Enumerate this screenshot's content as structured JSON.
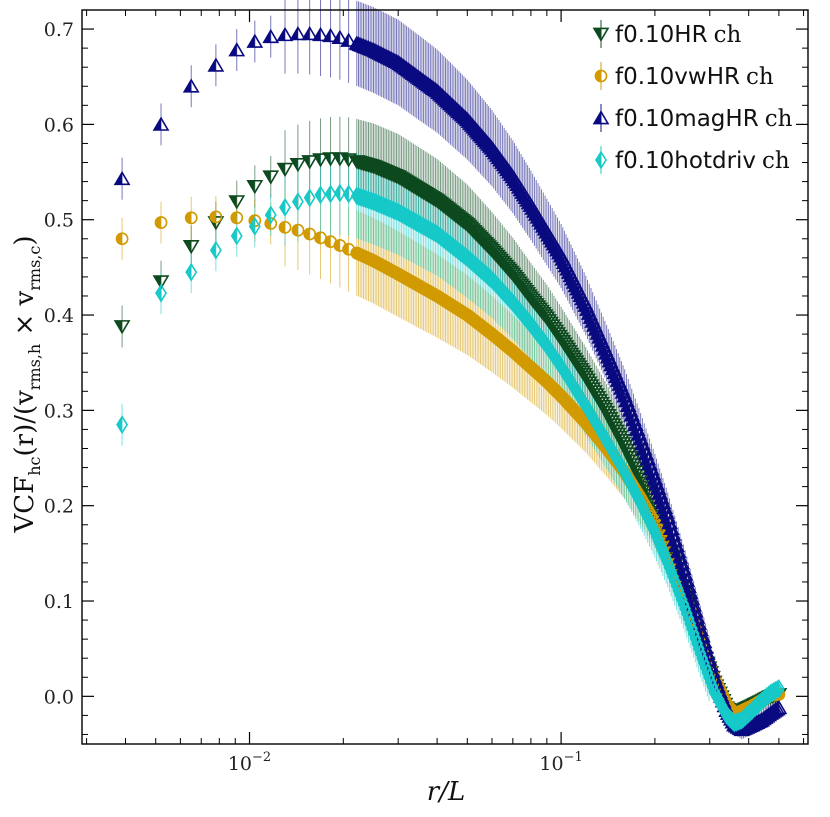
{
  "chart_data": {
    "type": "scatter",
    "x_scale": "log",
    "xlim": [
      0.0029,
      0.62
    ],
    "ylim": [
      -0.05,
      0.72
    ],
    "xlabel": "r/L",
    "ylabel": "VCF_hc(r)/(v_rms,h × v_rms,c)",
    "xlabel_parts": {
      "main": "r/L"
    },
    "ylabel_parts": {
      "base": "VCF",
      "sub1": "hc",
      "mid": "(r)/(v",
      "sub2": "rms,h",
      "times": " × v",
      "sub3": "rms,c",
      "end": ")"
    },
    "y_ticks": [
      0.0,
      0.1,
      0.2,
      0.3,
      0.4,
      0.5,
      0.6,
      0.7
    ],
    "y_tick_labels": [
      "0.0",
      "0.1",
      "0.2",
      "0.3",
      "0.4",
      "0.5",
      "0.6",
      "0.7"
    ],
    "x_ticks": [
      0.01,
      0.1
    ],
    "x_tick_labels": [
      {
        "base": "10",
        "exp": "−2"
      },
      {
        "base": "10",
        "exp": "−1"
      }
    ],
    "legend_position": "top-right",
    "grid": false,
    "series": [
      {
        "name": "f0.10HR",
        "suffix": "ch",
        "color": "#0d4a1f",
        "marker": "triangle-down",
        "points": [
          [
            0.0039,
            0.388
          ],
          [
            0.0052,
            0.435
          ],
          [
            0.0065,
            0.472
          ],
          [
            0.0078,
            0.497
          ],
          [
            0.0091,
            0.519
          ],
          [
            0.0104,
            0.535
          ],
          [
            0.0117,
            0.545
          ],
          [
            0.013,
            0.553
          ],
          [
            0.0143,
            0.558
          ],
          [
            0.0156,
            0.561
          ],
          [
            0.0169,
            0.563
          ],
          [
            0.0182,
            0.564
          ],
          [
            0.0195,
            0.564
          ],
          [
            0.0208,
            0.563
          ],
          [
            0.0221,
            0.561
          ],
          [
            0.025,
            0.556
          ],
          [
            0.03,
            0.545
          ],
          [
            0.04,
            0.52
          ],
          [
            0.05,
            0.495
          ],
          [
            0.06,
            0.468
          ],
          [
            0.07,
            0.443
          ],
          [
            0.08,
            0.418
          ],
          [
            0.09,
            0.397
          ],
          [
            0.1,
            0.375
          ],
          [
            0.12,
            0.335
          ],
          [
            0.14,
            0.298
          ],
          [
            0.16,
            0.262
          ],
          [
            0.18,
            0.228
          ],
          [
            0.2,
            0.193
          ],
          [
            0.22,
            0.158
          ],
          [
            0.25,
            0.105
          ],
          [
            0.28,
            0.055
          ],
          [
            0.31,
            0.015
          ],
          [
            0.34,
            -0.012
          ],
          [
            0.36,
            -0.02
          ],
          [
            0.38,
            -0.015
          ],
          [
            0.41,
            -0.01
          ],
          [
            0.44,
            -0.005
          ],
          [
            0.47,
            0.0
          ],
          [
            0.5,
            0.002
          ]
        ]
      },
      {
        "name": "f0.10vwHR",
        "suffix": "ch",
        "color": "#d19a00",
        "marker": "circle-half",
        "points": [
          [
            0.0039,
            0.48
          ],
          [
            0.0052,
            0.497
          ],
          [
            0.0065,
            0.502
          ],
          [
            0.0078,
            0.503
          ],
          [
            0.0091,
            0.502
          ],
          [
            0.0104,
            0.499
          ],
          [
            0.0117,
            0.496
          ],
          [
            0.013,
            0.492
          ],
          [
            0.0143,
            0.489
          ],
          [
            0.0156,
            0.485
          ],
          [
            0.0169,
            0.481
          ],
          [
            0.0182,
            0.477
          ],
          [
            0.0195,
            0.473
          ],
          [
            0.0208,
            0.469
          ],
          [
            0.0221,
            0.465
          ],
          [
            0.025,
            0.457
          ],
          [
            0.03,
            0.443
          ],
          [
            0.04,
            0.42
          ],
          [
            0.05,
            0.4
          ],
          [
            0.06,
            0.38
          ],
          [
            0.07,
            0.362
          ],
          [
            0.08,
            0.345
          ],
          [
            0.09,
            0.33
          ],
          [
            0.1,
            0.315
          ],
          [
            0.12,
            0.287
          ],
          [
            0.14,
            0.26
          ],
          [
            0.16,
            0.235
          ],
          [
            0.18,
            0.208
          ],
          [
            0.2,
            0.182
          ],
          [
            0.22,
            0.152
          ],
          [
            0.25,
            0.105
          ],
          [
            0.28,
            0.06
          ],
          [
            0.31,
            0.02
          ],
          [
            0.34,
            -0.008
          ],
          [
            0.36,
            -0.018
          ],
          [
            0.38,
            -0.015
          ],
          [
            0.41,
            -0.01
          ],
          [
            0.44,
            -0.004
          ],
          [
            0.47,
            0.001
          ],
          [
            0.5,
            0.002
          ]
        ]
      },
      {
        "name": "f0.10magHR",
        "suffix": "ch",
        "color": "#0a0a80",
        "marker": "triangle-up",
        "points": [
          [
            0.0039,
            0.543
          ],
          [
            0.0052,
            0.6
          ],
          [
            0.0065,
            0.64
          ],
          [
            0.0078,
            0.662
          ],
          [
            0.0091,
            0.678
          ],
          [
            0.0104,
            0.687
          ],
          [
            0.0117,
            0.692
          ],
          [
            0.013,
            0.694
          ],
          [
            0.0143,
            0.695
          ],
          [
            0.0156,
            0.695
          ],
          [
            0.0169,
            0.694
          ],
          [
            0.0182,
            0.693
          ],
          [
            0.0195,
            0.691
          ],
          [
            0.0208,
            0.688
          ],
          [
            0.0221,
            0.685
          ],
          [
            0.025,
            0.678
          ],
          [
            0.03,
            0.665
          ],
          [
            0.04,
            0.635
          ],
          [
            0.05,
            0.605
          ],
          [
            0.06,
            0.575
          ],
          [
            0.07,
            0.545
          ],
          [
            0.08,
            0.515
          ],
          [
            0.09,
            0.487
          ],
          [
            0.1,
            0.462
          ],
          [
            0.12,
            0.41
          ],
          [
            0.14,
            0.36
          ],
          [
            0.16,
            0.315
          ],
          [
            0.18,
            0.27
          ],
          [
            0.2,
            0.228
          ],
          [
            0.22,
            0.188
          ],
          [
            0.25,
            0.128
          ],
          [
            0.28,
            0.07
          ],
          [
            0.31,
            0.02
          ],
          [
            0.34,
            -0.015
          ],
          [
            0.36,
            -0.03
          ],
          [
            0.38,
            -0.035
          ],
          [
            0.41,
            -0.03
          ],
          [
            0.44,
            -0.025
          ],
          [
            0.47,
            -0.018
          ],
          [
            0.5,
            -0.012
          ]
        ]
      },
      {
        "name": "f0.10hotdriv",
        "suffix": "ch",
        "color": "#17c9c9",
        "marker": "diamond-half",
        "points": [
          [
            0.0039,
            0.285
          ],
          [
            0.0052,
            0.423
          ],
          [
            0.0065,
            0.445
          ],
          [
            0.0078,
            0.468
          ],
          [
            0.0091,
            0.483
          ],
          [
            0.0104,
            0.493
          ],
          [
            0.0117,
            0.505
          ],
          [
            0.013,
            0.513
          ],
          [
            0.0143,
            0.519
          ],
          [
            0.0156,
            0.523
          ],
          [
            0.0169,
            0.526
          ],
          [
            0.0182,
            0.527
          ],
          [
            0.0195,
            0.528
          ],
          [
            0.0208,
            0.527
          ],
          [
            0.0221,
            0.525
          ],
          [
            0.025,
            0.519
          ],
          [
            0.03,
            0.508
          ],
          [
            0.04,
            0.485
          ],
          [
            0.05,
            0.46
          ],
          [
            0.06,
            0.437
          ],
          [
            0.07,
            0.413
          ],
          [
            0.08,
            0.39
          ],
          [
            0.09,
            0.368
          ],
          [
            0.1,
            0.346
          ],
          [
            0.12,
            0.305
          ],
          [
            0.14,
            0.268
          ],
          [
            0.16,
            0.235
          ],
          [
            0.18,
            0.203
          ],
          [
            0.2,
            0.172
          ],
          [
            0.22,
            0.14
          ],
          [
            0.25,
            0.092
          ],
          [
            0.28,
            0.045
          ],
          [
            0.31,
            0.005
          ],
          [
            0.34,
            -0.02
          ],
          [
            0.36,
            -0.028
          ],
          [
            0.38,
            -0.025
          ],
          [
            0.41,
            -0.015
          ],
          [
            0.44,
            -0.005
          ],
          [
            0.47,
            0.003
          ],
          [
            0.5,
            0.008
          ]
        ]
      }
    ]
  }
}
